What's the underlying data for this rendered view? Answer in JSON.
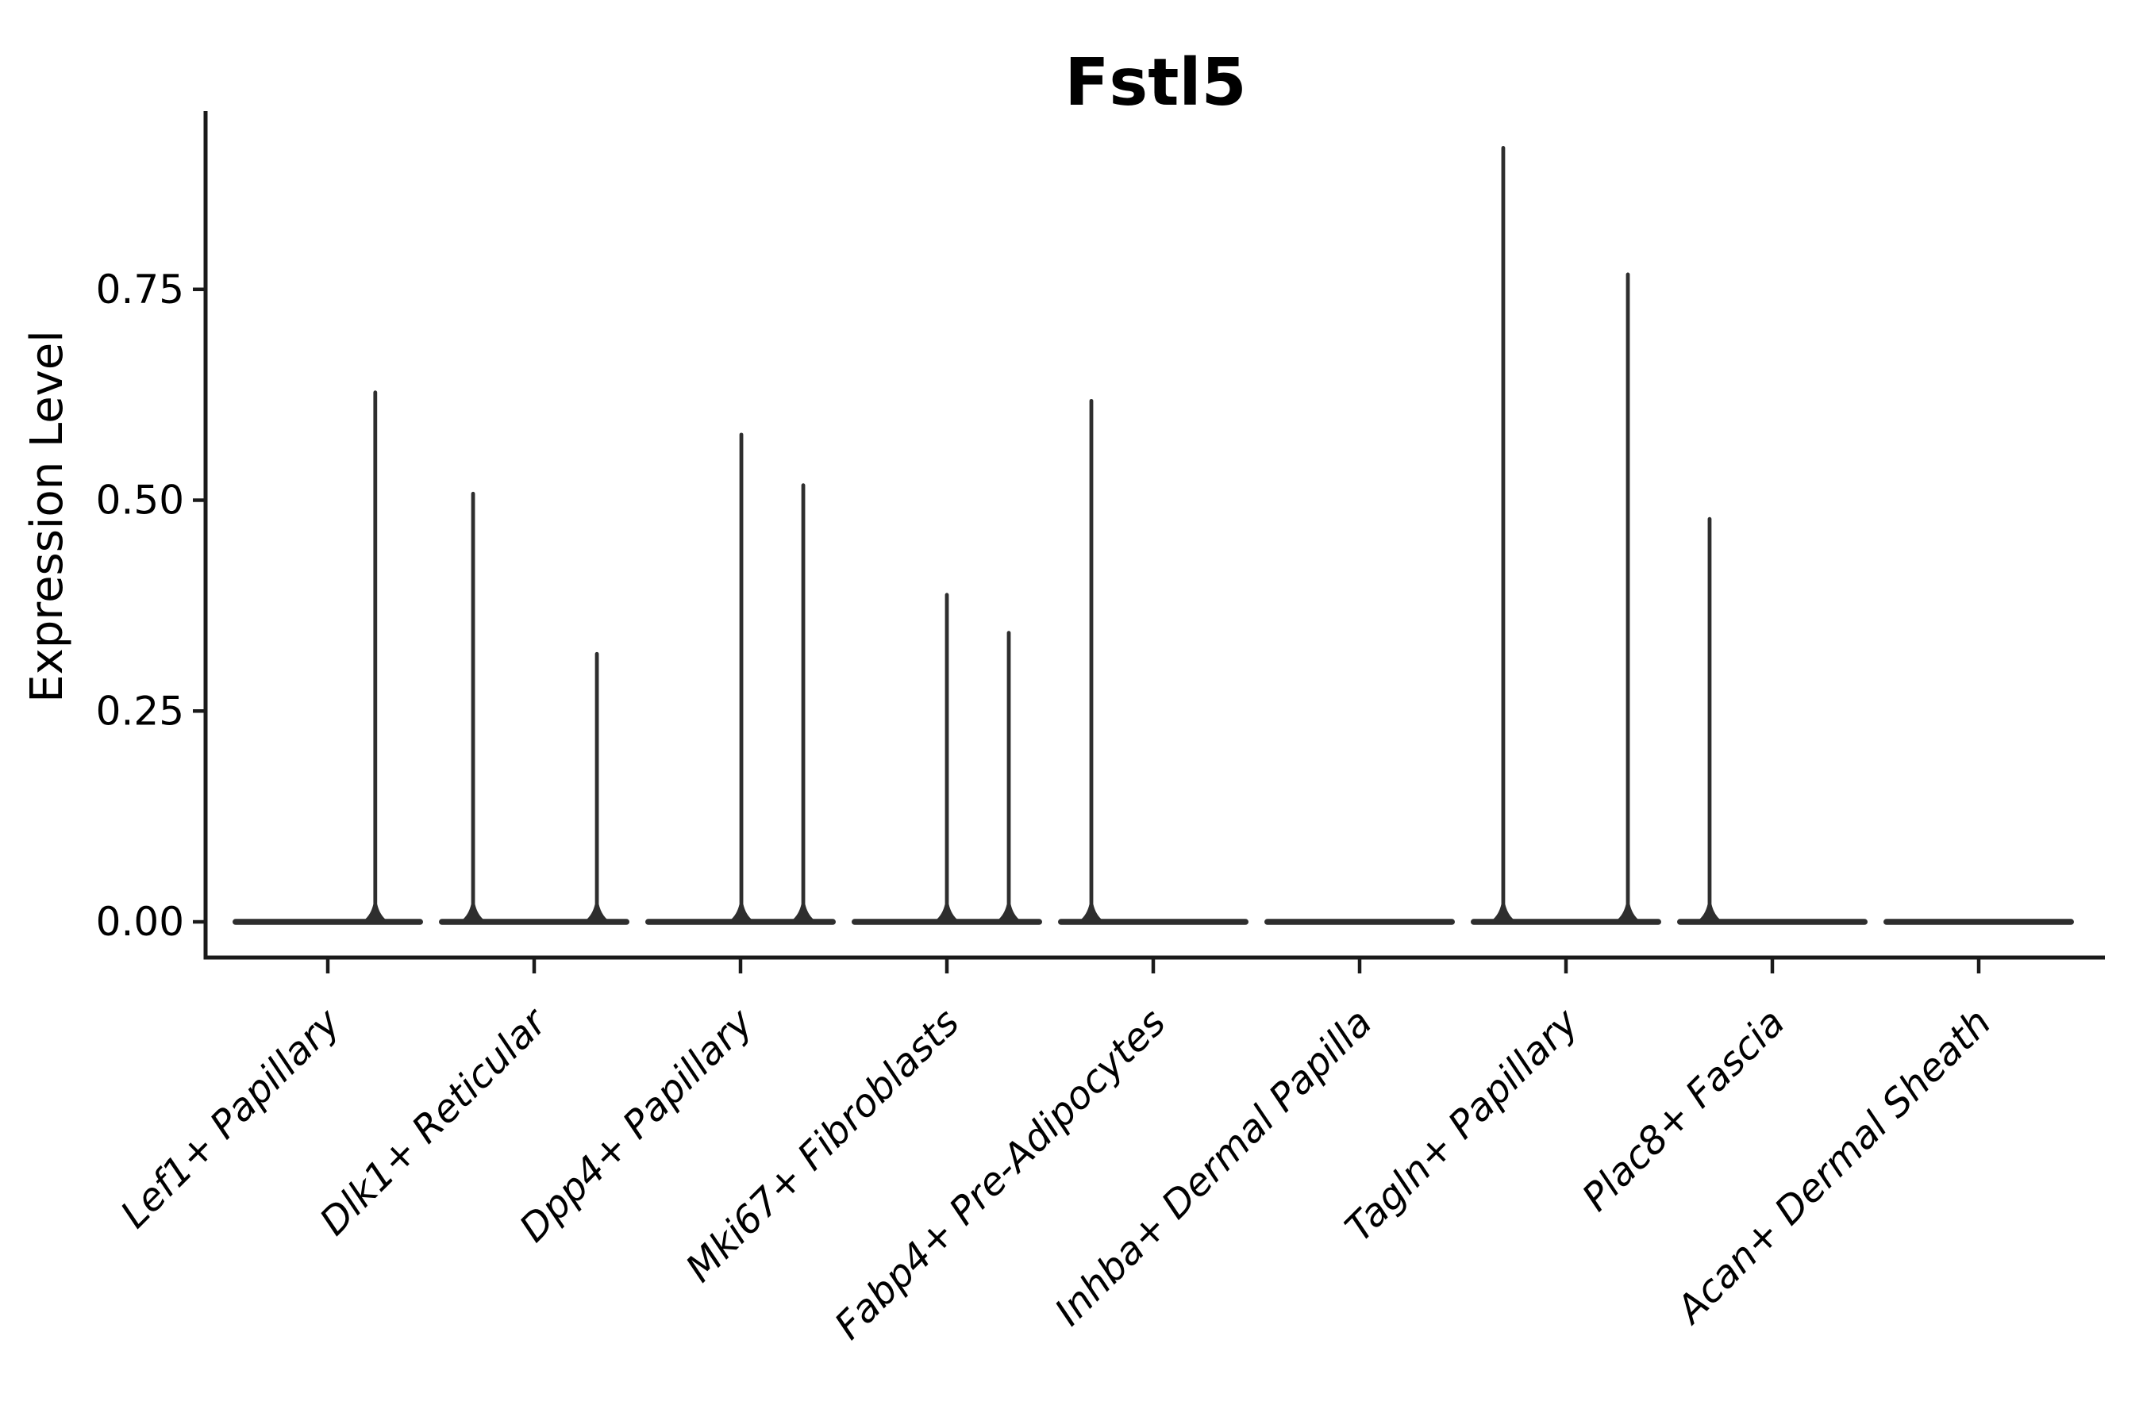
{
  "figure": {
    "background": "#ffffff",
    "text_color": "#000000",
    "axis_color": "#1a1a1a",
    "violin_color": "#2e2e2e"
  },
  "chart_data": {
    "type": "violin",
    "title": "Fstl5",
    "xlabel": "",
    "ylabel": "Expression Level",
    "grid": false,
    "legend": "none",
    "ylim": [
      0,
      0.96
    ],
    "yticks": [
      "0.00",
      "0.25",
      "0.50",
      "0.75"
    ],
    "ytick_values": [
      0.0,
      0.25,
      0.5,
      0.75
    ],
    "categories": [
      "Lef1+ Papillary",
      "Dlk1+ Reticular",
      "Dpp4+ Papillary",
      "Mki67+ Fibroblasts",
      "Fabp4+ Pre-Adipocytes",
      "Inhba+ Dermal Papilla",
      "Tagln+ Papillary",
      "Plac8+ Fascia",
      "Acan+ Dermal Sheath"
    ],
    "violins": [
      {
        "category": "Lef1+ Papillary",
        "baseline_value": 0,
        "spikes": [
          {
            "offset": 0.23,
            "max": 0.63
          }
        ]
      },
      {
        "category": "Dlk1+ Reticular",
        "baseline_value": 0,
        "spikes": [
          {
            "offset": -0.296,
            "max": 0.51
          },
          {
            "offset": 0.304,
            "max": 0.32
          }
        ]
      },
      {
        "category": "Dpp4+ Papillary",
        "baseline_value": 0,
        "spikes": [
          {
            "offset": 0.004,
            "max": 0.58
          },
          {
            "offset": 0.304,
            "max": 0.52
          }
        ]
      },
      {
        "category": "Mki67+ Fibroblasts",
        "baseline_value": 0,
        "spikes": [
          {
            "offset": 0.0,
            "max": 0.39
          },
          {
            "offset": 0.3,
            "max": 0.345
          }
        ]
      },
      {
        "category": "Fabp4+ Pre-Adipocytes",
        "baseline_value": 0,
        "spikes": [
          {
            "offset": -0.3,
            "max": 0.62
          }
        ]
      },
      {
        "category": "Inhba+ Dermal Papilla",
        "baseline_value": 0,
        "spikes": []
      },
      {
        "category": "Tagln+ Papillary",
        "baseline_value": 0,
        "spikes": [
          {
            "offset": -0.304,
            "max": 0.92
          },
          {
            "offset": 0.3,
            "max": 0.77
          }
        ]
      },
      {
        "category": "Plac8+ Fascia",
        "baseline_value": 0,
        "spikes": [
          {
            "offset": -0.304,
            "max": 0.48
          }
        ]
      },
      {
        "category": "Acan+ Dermal Sheath",
        "baseline_value": 0,
        "spikes": []
      }
    ]
  }
}
